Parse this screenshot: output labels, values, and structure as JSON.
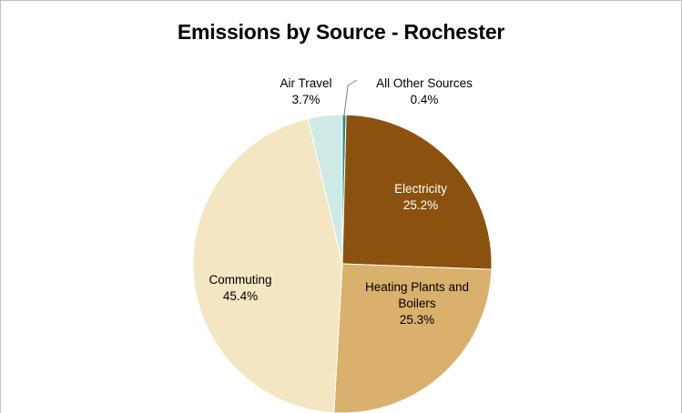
{
  "chart_data": {
    "type": "pie",
    "title": "Emissions by Source - Rochester",
    "slices": [
      {
        "name": "All Other Sources",
        "value": 0.4,
        "label": "0.4%",
        "color": "#2e8b84",
        "label_color": "#000000"
      },
      {
        "name": "Electricity",
        "value": 25.2,
        "label": "25.2%",
        "color": "#8b520f",
        "label_color": "#ffffff"
      },
      {
        "name": "Heating Plants and Boilers",
        "value": 25.3,
        "label": "25.3%",
        "color": "#d9b06c",
        "label_color": "#000000"
      },
      {
        "name": "Commuting",
        "value": 45.4,
        "label": "45.4%",
        "color": "#f4e5c3",
        "label_color": "#000000"
      },
      {
        "name": "Air Travel",
        "value": 3.7,
        "label": "3.7%",
        "color": "#cdeae6",
        "label_color": "#000000"
      }
    ],
    "start_angle_deg": 0,
    "direction": "clockwise",
    "legend": "none"
  }
}
